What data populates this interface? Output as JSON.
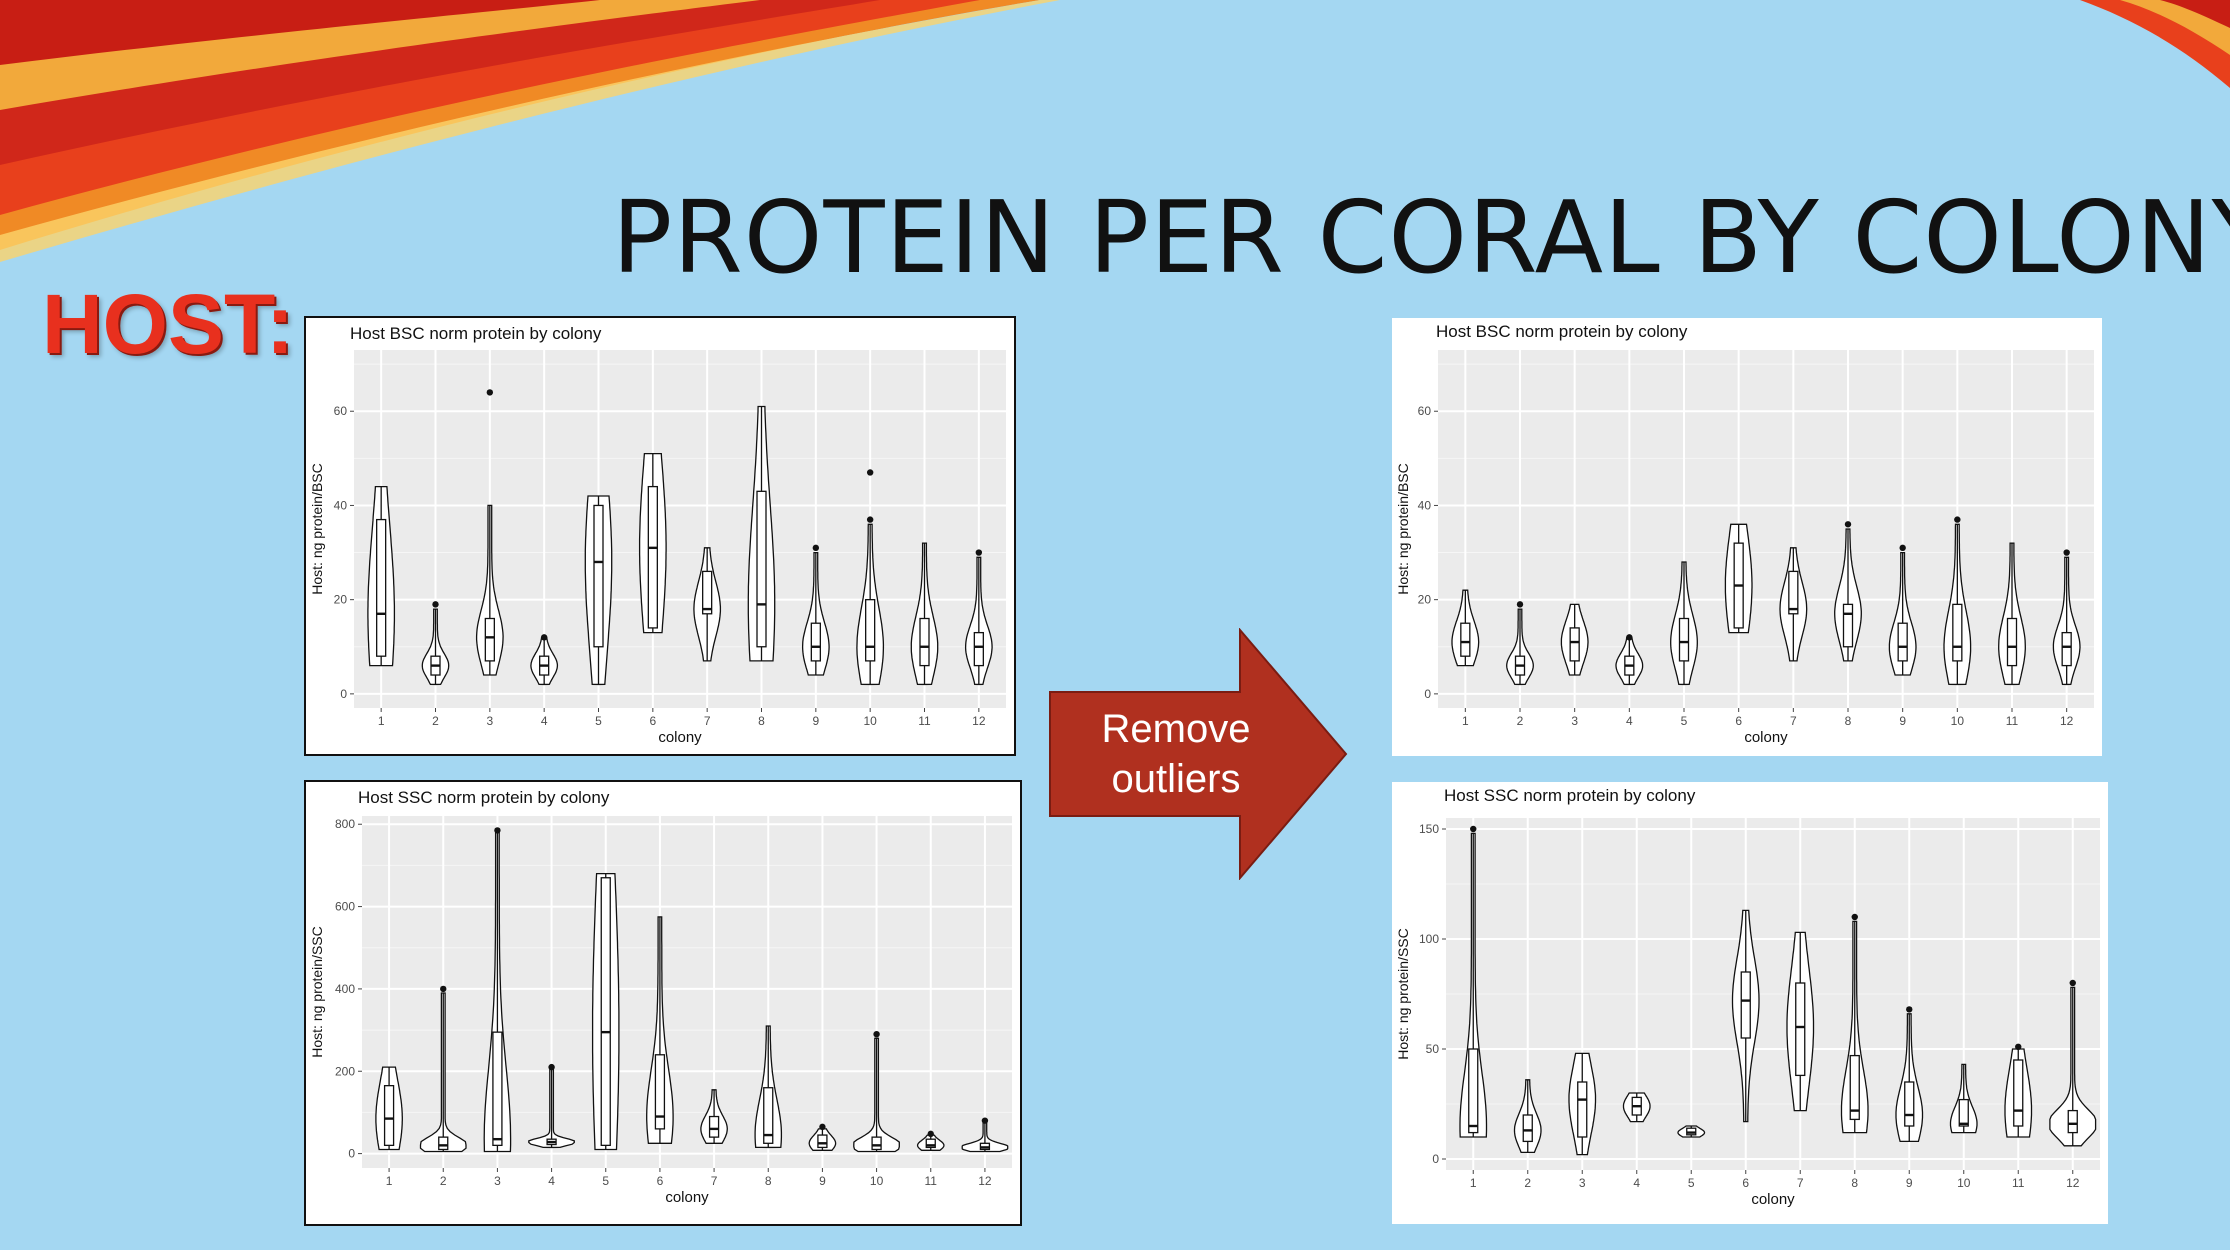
{
  "slide": {
    "title": "PROTEIN PER CORAL BY COLONY",
    "host_label": "HOST:",
    "arrow_label": "Remove outliers",
    "colors": {
      "background": "#a4d7f2",
      "arrow": "#b0301f",
      "host_label": "#e8301e"
    }
  },
  "chart_data": [
    {
      "id": "bsc_raw",
      "type": "violin",
      "title": "Host BSC norm protein by colony",
      "xlabel": "colony",
      "ylabel": "Host: ng protein/BSC",
      "categories": [
        "1",
        "2",
        "3",
        "4",
        "5",
        "6",
        "7",
        "8",
        "9",
        "10",
        "11",
        "12"
      ],
      "ylim": [
        -3,
        73
      ],
      "yticks": [
        0,
        20,
        40,
        60
      ],
      "series": [
        {
          "min": 6,
          "q1": 8,
          "median": 17,
          "q3": 37,
          "max": 44,
          "outliers": []
        },
        {
          "min": 2,
          "q1": 4,
          "median": 6,
          "q3": 8,
          "max": 18,
          "outliers": [
            19
          ]
        },
        {
          "min": 4,
          "q1": 7,
          "median": 12,
          "q3": 16,
          "max": 40,
          "outliers": [
            64
          ]
        },
        {
          "min": 2,
          "q1": 4,
          "median": 6,
          "q3": 8,
          "max": 12,
          "outliers": [
            12
          ]
        },
        {
          "min": 2,
          "q1": 10,
          "median": 28,
          "q3": 40,
          "max": 42,
          "outliers": []
        },
        {
          "min": 13,
          "q1": 14,
          "median": 31,
          "q3": 44,
          "max": 51,
          "outliers": []
        },
        {
          "min": 7,
          "q1": 17,
          "median": 18,
          "q3": 26,
          "max": 31,
          "outliers": []
        },
        {
          "min": 7,
          "q1": 10,
          "median": 19,
          "q3": 43,
          "max": 61,
          "outliers": []
        },
        {
          "min": 4,
          "q1": 7,
          "median": 10,
          "q3": 15,
          "max": 30,
          "outliers": [
            31
          ]
        },
        {
          "min": 2,
          "q1": 7,
          "median": 10,
          "q3": 20,
          "max": 36,
          "outliers": [
            37,
            47
          ]
        },
        {
          "min": 2,
          "q1": 6,
          "median": 10,
          "q3": 16,
          "max": 32,
          "outliers": []
        },
        {
          "min": 2,
          "q1": 6,
          "median": 10,
          "q3": 13,
          "max": 29,
          "outliers": [
            30
          ]
        }
      ]
    },
    {
      "id": "ssc_raw",
      "type": "violin",
      "title": "Host SSC norm protein by colony",
      "xlabel": "colony",
      "ylabel": "Host: ng protein/SSC",
      "categories": [
        "1",
        "2",
        "3",
        "4",
        "5",
        "6",
        "7",
        "8",
        "9",
        "10",
        "11",
        "12"
      ],
      "ylim": [
        -35,
        820
      ],
      "yticks": [
        0,
        200,
        400,
        600,
        800
      ],
      "series": [
        {
          "min": 10,
          "q1": 20,
          "median": 85,
          "q3": 165,
          "max": 210,
          "outliers": []
        },
        {
          "min": 5,
          "q1": 10,
          "median": 20,
          "q3": 40,
          "max": 390,
          "outliers": [
            400
          ]
        },
        {
          "min": 5,
          "q1": 20,
          "median": 35,
          "q3": 295,
          "max": 780,
          "outliers": [
            785
          ]
        },
        {
          "min": 15,
          "q1": 22,
          "median": 28,
          "q3": 35,
          "max": 205,
          "outliers": [
            210
          ]
        },
        {
          "min": 10,
          "q1": 20,
          "median": 295,
          "q3": 670,
          "max": 680,
          "outliers": []
        },
        {
          "min": 25,
          "q1": 60,
          "median": 90,
          "q3": 240,
          "max": 575,
          "outliers": []
        },
        {
          "min": 25,
          "q1": 40,
          "median": 60,
          "q3": 90,
          "max": 155,
          "outliers": []
        },
        {
          "min": 15,
          "q1": 25,
          "median": 45,
          "q3": 160,
          "max": 310,
          "outliers": []
        },
        {
          "min": 8,
          "q1": 15,
          "median": 25,
          "q3": 45,
          "max": 60,
          "outliers": [
            65
          ]
        },
        {
          "min": 5,
          "q1": 10,
          "median": 20,
          "q3": 40,
          "max": 280,
          "outliers": [
            290
          ]
        },
        {
          "min": 8,
          "q1": 15,
          "median": 20,
          "q3": 35,
          "max": 45,
          "outliers": [
            48
          ]
        },
        {
          "min": 5,
          "q1": 10,
          "median": 15,
          "q3": 25,
          "max": 75,
          "outliers": [
            80
          ]
        }
      ]
    },
    {
      "id": "bsc_clean",
      "type": "violin",
      "title": "Host BSC norm protein by colony",
      "xlabel": "colony",
      "ylabel": "Host: ng protein/BSC",
      "categories": [
        "1",
        "2",
        "3",
        "4",
        "5",
        "6",
        "7",
        "8",
        "9",
        "10",
        "11",
        "12"
      ],
      "ylim": [
        -3,
        73
      ],
      "yticks": [
        0,
        20,
        40,
        60
      ],
      "series": [
        {
          "min": 6,
          "q1": 8,
          "median": 11,
          "q3": 15,
          "max": 22,
          "outliers": []
        },
        {
          "min": 2,
          "q1": 4,
          "median": 6,
          "q3": 8,
          "max": 18,
          "outliers": [
            19
          ]
        },
        {
          "min": 4,
          "q1": 7,
          "median": 11,
          "q3": 14,
          "max": 19,
          "outliers": []
        },
        {
          "min": 2,
          "q1": 4,
          "median": 6,
          "q3": 8,
          "max": 12,
          "outliers": [
            12
          ]
        },
        {
          "min": 2,
          "q1": 7,
          "median": 11,
          "q3": 16,
          "max": 28,
          "outliers": []
        },
        {
          "min": 13,
          "q1": 14,
          "median": 23,
          "q3": 32,
          "max": 36,
          "outliers": []
        },
        {
          "min": 7,
          "q1": 17,
          "median": 18,
          "q3": 26,
          "max": 31,
          "outliers": []
        },
        {
          "min": 7,
          "q1": 10,
          "median": 17,
          "q3": 19,
          "max": 35,
          "outliers": [
            36
          ]
        },
        {
          "min": 4,
          "q1": 7,
          "median": 10,
          "q3": 15,
          "max": 30,
          "outliers": [
            31
          ]
        },
        {
          "min": 2,
          "q1": 7,
          "median": 10,
          "q3": 19,
          "max": 36,
          "outliers": [
            37
          ]
        },
        {
          "min": 2,
          "q1": 6,
          "median": 10,
          "q3": 16,
          "max": 32,
          "outliers": []
        },
        {
          "min": 2,
          "q1": 6,
          "median": 10,
          "q3": 13,
          "max": 29,
          "outliers": [
            30
          ]
        }
      ]
    },
    {
      "id": "ssc_clean",
      "type": "violin",
      "title": "Host SSC norm protein by colony",
      "xlabel": "colony",
      "ylabel": "Host: ng protein/SSC",
      "categories": [
        "1",
        "2",
        "3",
        "4",
        "5",
        "6",
        "7",
        "8",
        "9",
        "10",
        "11",
        "12"
      ],
      "ylim": [
        -5,
        155
      ],
      "yticks": [
        0,
        50,
        100,
        150
      ],
      "series": [
        {
          "min": 10,
          "q1": 12,
          "median": 15,
          "q3": 50,
          "max": 148,
          "outliers": [
            150
          ]
        },
        {
          "min": 3,
          "q1": 8,
          "median": 13,
          "q3": 20,
          "max": 36,
          "outliers": []
        },
        {
          "min": 2,
          "q1": 10,
          "median": 27,
          "q3": 35,
          "max": 48,
          "outliers": []
        },
        {
          "min": 17,
          "q1": 20,
          "median": 24,
          "q3": 28,
          "max": 30,
          "outliers": []
        },
        {
          "min": 10,
          "q1": 11,
          "median": 12,
          "q3": 14,
          "max": 15,
          "outliers": []
        },
        {
          "min": 17,
          "q1": 55,
          "median": 72,
          "q3": 85,
          "max": 113,
          "outliers": []
        },
        {
          "min": 22,
          "q1": 38,
          "median": 60,
          "q3": 80,
          "max": 103,
          "outliers": []
        },
        {
          "min": 12,
          "q1": 18,
          "median": 22,
          "q3": 47,
          "max": 108,
          "outliers": [
            110
          ]
        },
        {
          "min": 8,
          "q1": 15,
          "median": 20,
          "q3": 35,
          "max": 66,
          "outliers": [
            68
          ]
        },
        {
          "min": 12,
          "q1": 15,
          "median": 16,
          "q3": 27,
          "max": 43,
          "outliers": []
        },
        {
          "min": 10,
          "q1": 15,
          "median": 22,
          "q3": 45,
          "max": 50,
          "outliers": [
            51
          ]
        },
        {
          "min": 6,
          "q1": 12,
          "median": 16,
          "q3": 22,
          "max": 78,
          "outliers": [
            80
          ]
        }
      ]
    }
  ]
}
